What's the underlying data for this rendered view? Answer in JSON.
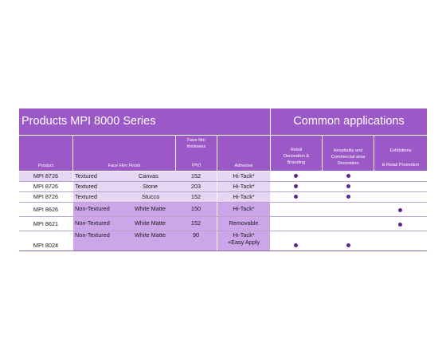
{
  "title_left": "Products MPI 8000 Series",
  "title_right": "Common applications",
  "headers": {
    "product": "Product",
    "finish": "Face Film Finish",
    "thickness_line1": "Face film",
    "thickness_line2": "thickness",
    "thickness_unit": "(my)",
    "adhesive": "Adhesive",
    "retail_line1": "Retail",
    "retail_line2": "Decoration &",
    "retail_line3": "Branding",
    "hospitality_line1": "Hospitality and",
    "hospitality_line2": "Commercial area",
    "hospitality_line3": "Decoration",
    "exhibitions_line1": "Exhibitions",
    "exhibitions_line2": "& Retail  Promotion"
  },
  "rows": [
    {
      "product": "MPI 8726",
      "finish_type": "Textured",
      "finish": "Canvas",
      "thickness": "152",
      "adhesive": "Hi-Tack*",
      "adhesive2": "",
      "retail": true,
      "hospitality": true,
      "exhibitions": false
    },
    {
      "product": "MPI 8726",
      "finish_type": "Textured",
      "finish": "Stone",
      "thickness": "203",
      "adhesive": "Hi-Tack*",
      "adhesive2": "",
      "retail": true,
      "hospitality": true,
      "exhibitions": false
    },
    {
      "product": "MPI 8726",
      "finish_type": "Textured",
      "finish": "Stucco",
      "thickness": "152",
      "adhesive": "Hi-Tack*",
      "adhesive2": "",
      "retail": true,
      "hospitality": true,
      "exhibitions": false
    },
    {
      "product": "MPI 8626",
      "finish_type": "Non-Textured",
      "finish": "White Matte",
      "thickness": "150",
      "adhesive": "Hi-Tack*",
      "adhesive2": "",
      "retail": false,
      "hospitality": false,
      "exhibitions": true
    },
    {
      "product": "MPI 8621",
      "finish_type": "Non-Textured",
      "finish": "White Matte",
      "thickness": "152",
      "adhesive": "Removable",
      "adhesive2": "",
      "retail": false,
      "hospitality": false,
      "exhibitions": true
    },
    {
      "product": "MPI 8024",
      "finish_type": "Non-Textured",
      "finish": "White Matte",
      "thickness": "90",
      "adhesive": "Hi-Tack*",
      "adhesive2": "+Easy Apply",
      "retail": true,
      "hospitality": true,
      "exhibitions": false
    }
  ],
  "colors": {
    "header": "#9b59c8",
    "row_light": "#e7d6f3",
    "row_mid": "#cda6ea",
    "dot": "#5f2591"
  }
}
